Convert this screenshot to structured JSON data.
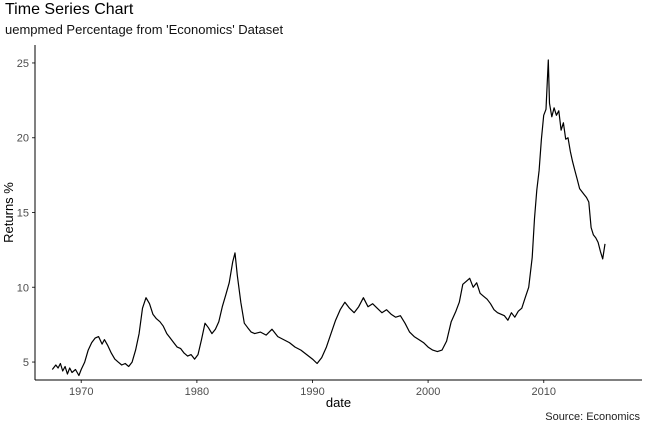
{
  "chart_data": {
    "type": "line",
    "title": "Time Series Chart",
    "subtitle": "uempmed Percentage from 'Economics' Dataset",
    "caption": "Source: Economics",
    "xlabel": "date",
    "ylabel": "Returns %",
    "xlim": [
      1966.0,
      2018.5
    ],
    "ylim": [
      3.8,
      26.2
    ],
    "x_ticks": [
      1970,
      1980,
      1990,
      2000,
      2010
    ],
    "y_ticks": [
      5,
      10,
      15,
      20,
      25
    ],
    "grid": false,
    "line_color": "#000000",
    "series": [
      {
        "x": [
          1967.5,
          1967.8,
          1968.0,
          1968.2,
          1968.4,
          1968.6,
          1968.8,
          1969.0,
          1969.2,
          1969.5,
          1969.8,
          1970.0,
          1970.3,
          1970.6,
          1970.9,
          1971.2,
          1971.5,
          1971.8,
          1972.0,
          1972.3,
          1972.6,
          1972.9,
          1973.2,
          1973.5,
          1973.8,
          1974.1,
          1974.4,
          1974.7,
          1975.0,
          1975.3,
          1975.6,
          1975.9,
          1976.2,
          1976.5,
          1976.8,
          1977.1,
          1977.4,
          1977.7,
          1978.0,
          1978.3,
          1978.6,
          1978.9,
          1979.2,
          1979.5,
          1979.8,
          1980.1,
          1980.4,
          1980.7,
          1981.0,
          1981.3,
          1981.6,
          1981.9,
          1982.2,
          1982.5,
          1982.8,
          1983.1,
          1983.3,
          1983.5,
          1983.8,
          1984.1,
          1984.4,
          1984.7,
          1985.0,
          1985.5,
          1986.0,
          1986.5,
          1987.0,
          1987.5,
          1988.0,
          1988.5,
          1989.0,
          1989.5,
          1990.0,
          1990.4,
          1990.8,
          1991.2,
          1991.6,
          1992.0,
          1992.4,
          1992.8,
          1993.2,
          1993.6,
          1994.0,
          1994.4,
          1994.8,
          1995.2,
          1995.6,
          1996.0,
          1996.4,
          1996.8,
          1997.2,
          1997.6,
          1998.0,
          1998.4,
          1998.8,
          1999.2,
          1999.6,
          2000.0,
          2000.4,
          2000.8,
          2001.2,
          2001.6,
          2002.0,
          2002.4,
          2002.7,
          2003.0,
          2003.3,
          2003.6,
          2003.9,
          2004.2,
          2004.5,
          2004.8,
          2005.1,
          2005.4,
          2005.7,
          2006.0,
          2006.3,
          2006.6,
          2006.9,
          2007.2,
          2007.5,
          2007.8,
          2008.1,
          2008.4,
          2008.7,
          2009.0,
          2009.2,
          2009.4,
          2009.6,
          2009.8,
          2010.0,
          2010.2,
          2010.4,
          2010.5,
          2010.7,
          2010.9,
          2011.1,
          2011.3,
          2011.5,
          2011.7,
          2011.9,
          2012.1,
          2012.3,
          2012.5,
          2012.7,
          2012.9,
          2013.1,
          2013.3,
          2013.5,
          2013.7,
          2013.9,
          2014.1,
          2014.3,
          2014.5,
          2014.7,
          2014.9,
          2015.1,
          2015.3
        ],
        "values": [
          4.5,
          4.8,
          4.6,
          4.9,
          4.4,
          4.7,
          4.2,
          4.6,
          4.3,
          4.5,
          4.1,
          4.5,
          5.0,
          5.8,
          6.3,
          6.6,
          6.7,
          6.2,
          6.5,
          6.1,
          5.6,
          5.2,
          5.0,
          4.8,
          4.9,
          4.7,
          5.0,
          5.8,
          6.9,
          8.6,
          9.3,
          8.9,
          8.2,
          7.9,
          7.7,
          7.4,
          6.9,
          6.6,
          6.3,
          6.0,
          5.9,
          5.6,
          5.4,
          5.5,
          5.2,
          5.5,
          6.5,
          7.6,
          7.3,
          6.9,
          7.2,
          7.7,
          8.7,
          9.5,
          10.3,
          11.7,
          12.3,
          10.8,
          9.0,
          7.6,
          7.3,
          7.0,
          6.9,
          7.0,
          6.8,
          7.2,
          6.7,
          6.5,
          6.3,
          6.0,
          5.8,
          5.5,
          5.2,
          4.9,
          5.3,
          6.0,
          6.9,
          7.8,
          8.5,
          9.0,
          8.6,
          8.3,
          8.7,
          9.3,
          8.7,
          8.9,
          8.6,
          8.3,
          8.5,
          8.2,
          8.0,
          8.1,
          7.6,
          7.0,
          6.7,
          6.5,
          6.3,
          6.0,
          5.8,
          5.7,
          5.8,
          6.4,
          7.7,
          8.4,
          9.0,
          10.2,
          10.4,
          10.6,
          10.0,
          10.3,
          9.6,
          9.4,
          9.2,
          8.9,
          8.5,
          8.3,
          8.2,
          8.1,
          7.8,
          8.3,
          8.0,
          8.4,
          8.6,
          9.3,
          10.0,
          12.0,
          14.6,
          16.5,
          17.8,
          19.9,
          21.5,
          21.9,
          25.2,
          22.3,
          21.4,
          22.0,
          21.5,
          21.8,
          20.5,
          21.0,
          19.9,
          20.0,
          19.1,
          18.4,
          17.8,
          17.2,
          16.6,
          16.4,
          16.2,
          16.0,
          15.7,
          14.0,
          13.5,
          13.3,
          13.0,
          12.4,
          11.9,
          12.9
        ]
      }
    ]
  }
}
